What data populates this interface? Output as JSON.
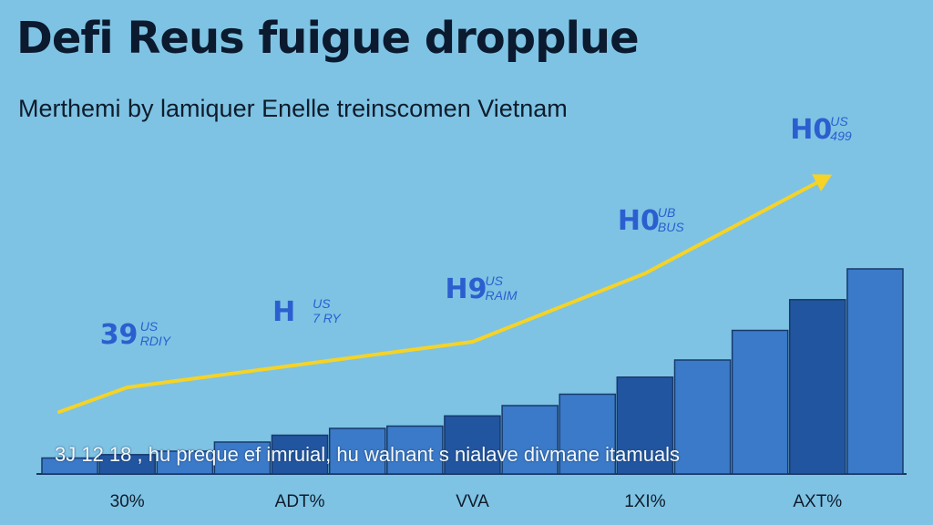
{
  "chart_data": {
    "type": "bar",
    "title": "Defi Reus fuigue dropplue",
    "subtitle": "Merthemi by lamiquer Enelle treinscomen Vietnam",
    "caption": "3J 12 18 , hu preque ef imruial, hu walnant s nialave divmane itamuals",
    "categories": [
      "30%",
      "ADT%",
      "VVA",
      "1XI%",
      "AXT%"
    ],
    "values": [
      1,
      2,
      3,
      5,
      9
    ],
    "trend": [
      1,
      2,
      3,
      6,
      10
    ],
    "value_labels": [
      {
        "big": "39",
        "small1": "US",
        "small2": "RDIY"
      },
      {
        "big": "H",
        "small1": "US",
        "small2": "7 RY"
      },
      {
        "big": "H9",
        "small1": "US",
        "small2": "RAIM"
      },
      {
        "big": "H0",
        "small1": "UB",
        "small2": "BUS"
      },
      {
        "big": "H0",
        "small1": "US",
        "small2": "499"
      }
    ],
    "colors": {
      "background": "#7ec3e4",
      "bar": "#3b7ac9",
      "bar_dark": "#2255a0",
      "trend": "#f5d327",
      "label": "#2b5fcf"
    },
    "grid": false,
    "legend": "none"
  }
}
